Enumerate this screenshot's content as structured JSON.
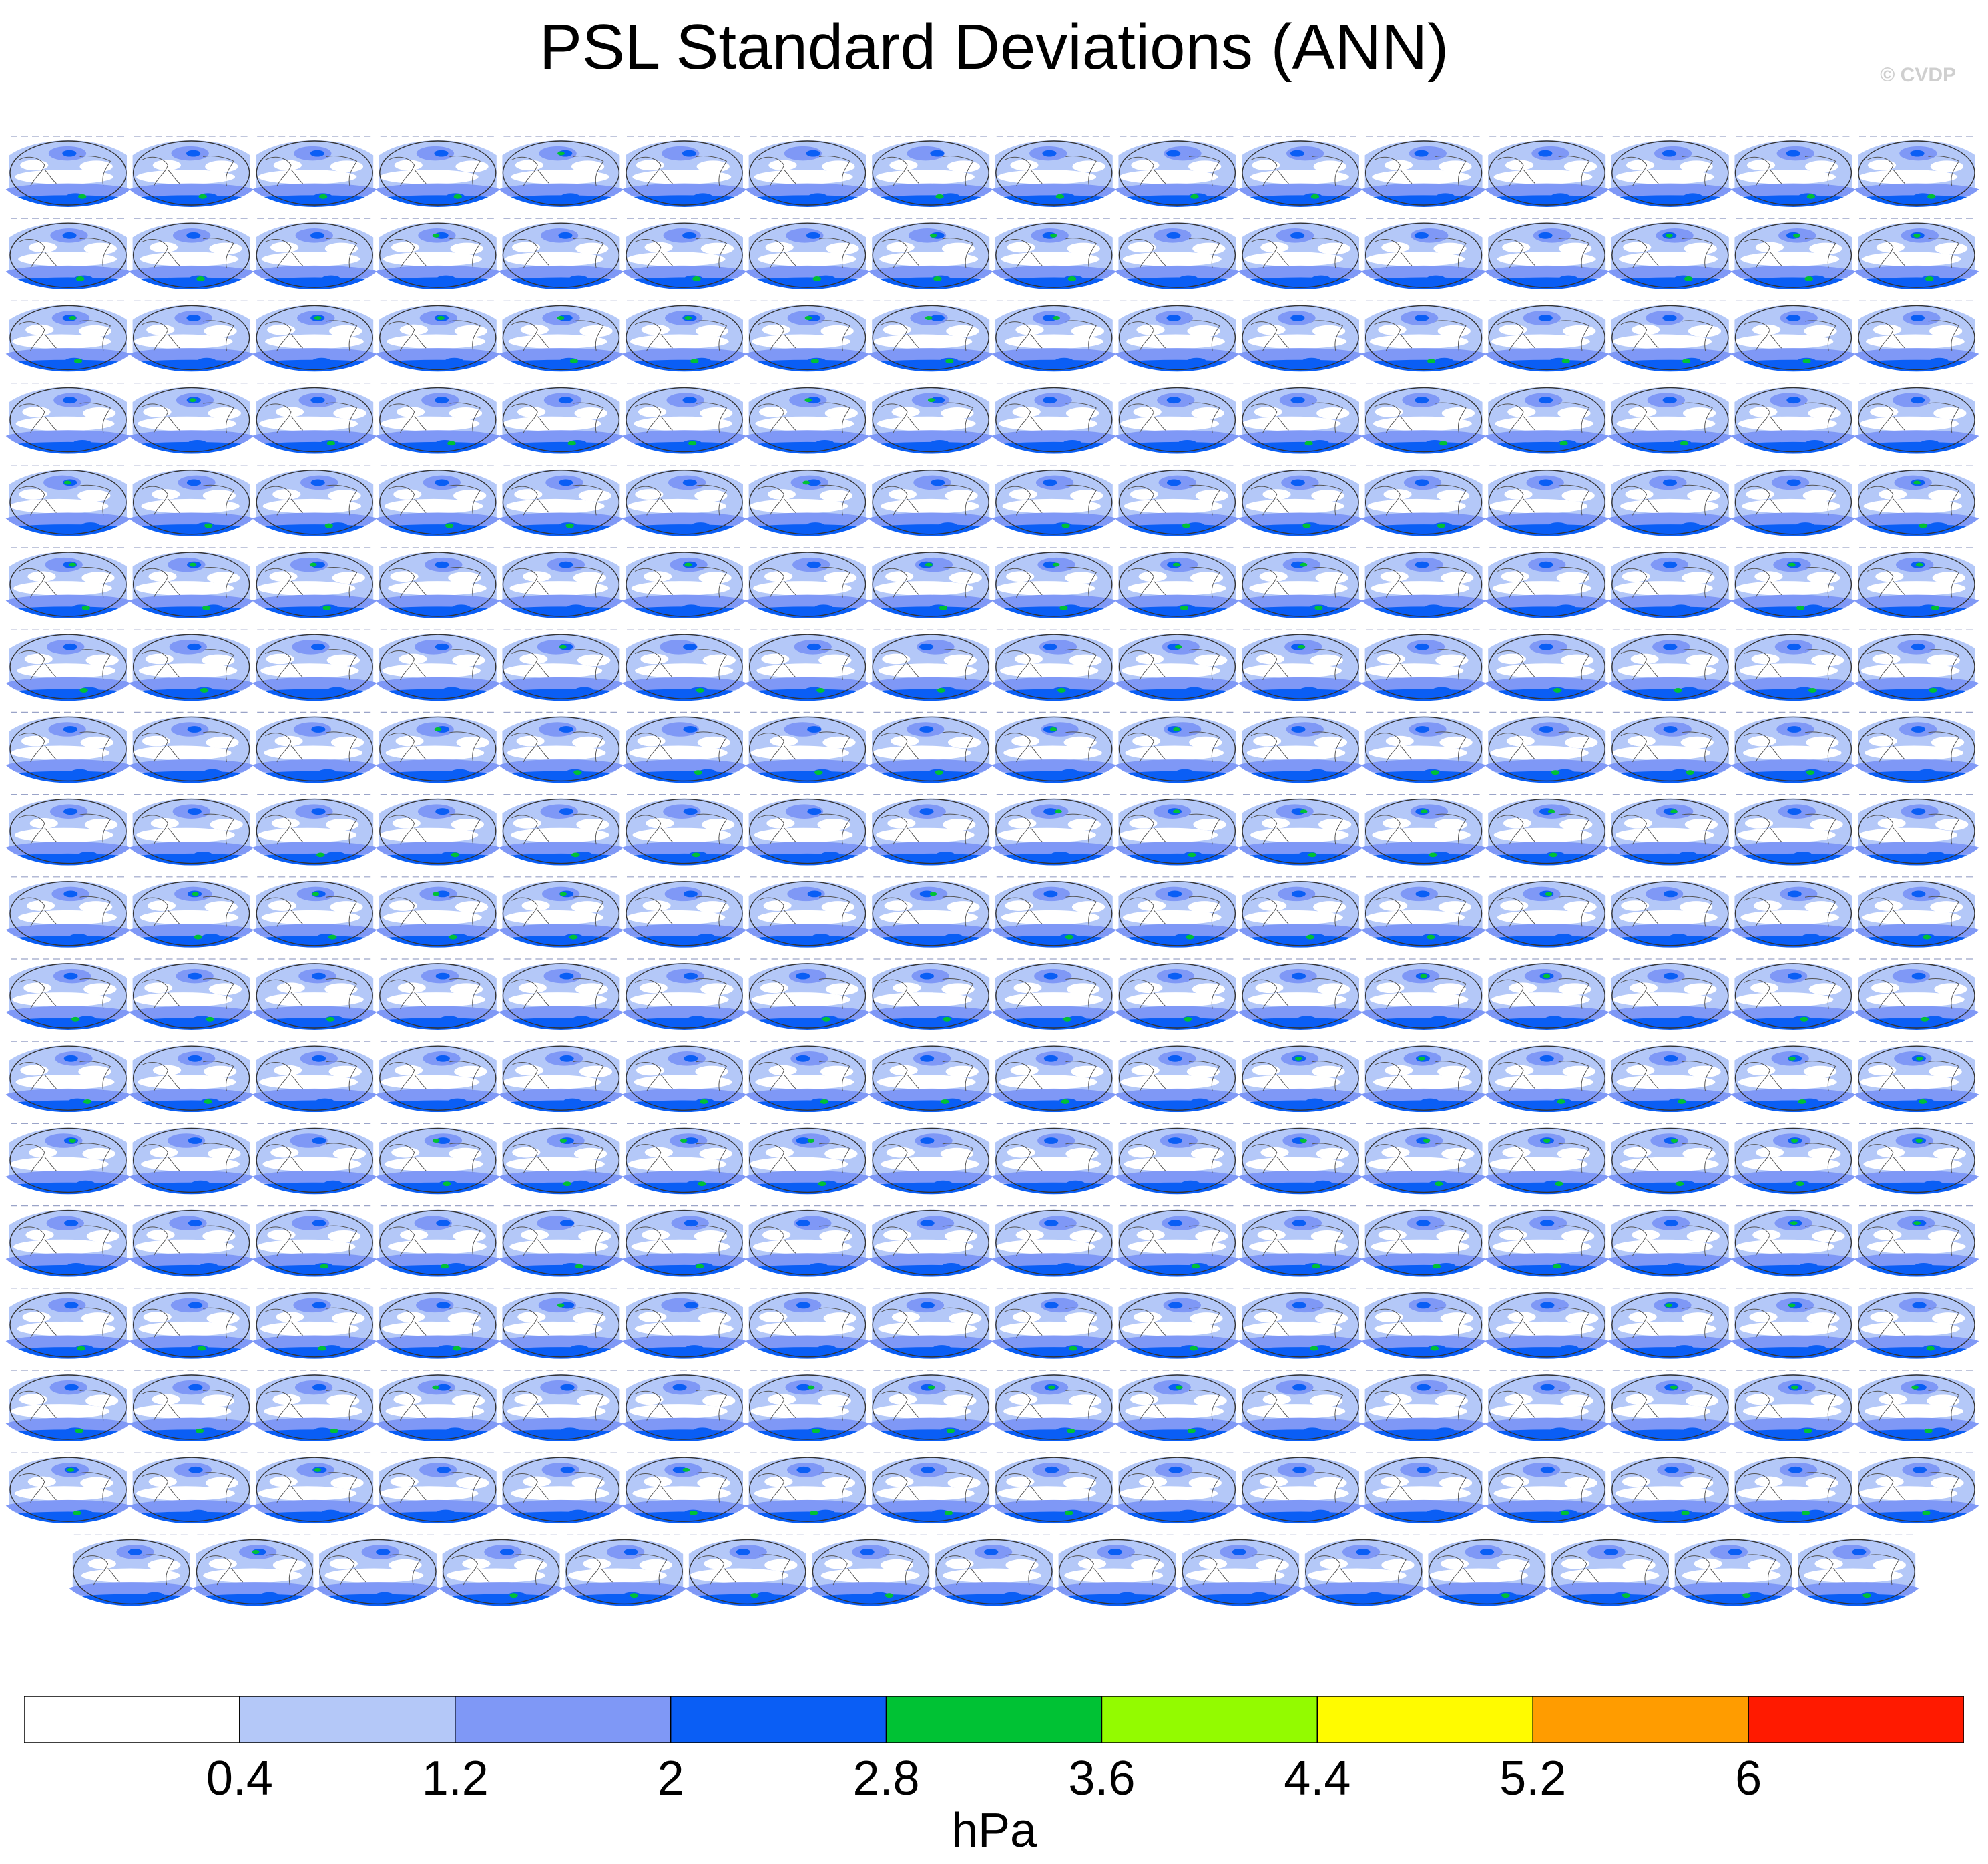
{
  "title": "PSL Standard Deviations (ANN)",
  "watermark": "© CVDP",
  "chart_data": {
    "type": "heatmap",
    "title": "PSL Standard Deviations (ANN)",
    "map_grid": {
      "panels_per_row": 16,
      "full_rows": 17,
      "last_row_panels": 15,
      "total_panels": 287
    },
    "legend": {
      "units": "hPa",
      "placement": "bottom",
      "tick_labels": [
        "0.4",
        "1.2",
        "2",
        "2.8",
        "3.6",
        "4.4",
        "5.2",
        "6"
      ],
      "bins": [
        {
          "range": [
            null,
            0.4
          ],
          "color": "#ffffff"
        },
        {
          "range": [
            0.4,
            1.2
          ],
          "color": "#b4c8f8"
        },
        {
          "range": [
            1.2,
            2.0
          ],
          "color": "#7f98f6"
        },
        {
          "range": [
            2.0,
            2.8
          ],
          "color": "#0a5ef5"
        },
        {
          "range": [
            2.8,
            3.6
          ],
          "color": "#00c234"
        },
        {
          "range": [
            3.6,
            4.4
          ],
          "color": "#93fb00"
        },
        {
          "range": [
            4.4,
            5.2
          ],
          "color": "#fffb00"
        },
        {
          "range": [
            5.2,
            6.0
          ],
          "color": "#ff9c00"
        },
        {
          "range": [
            6.0,
            null
          ],
          "color": "#ff1a00"
        }
      ]
    }
  }
}
